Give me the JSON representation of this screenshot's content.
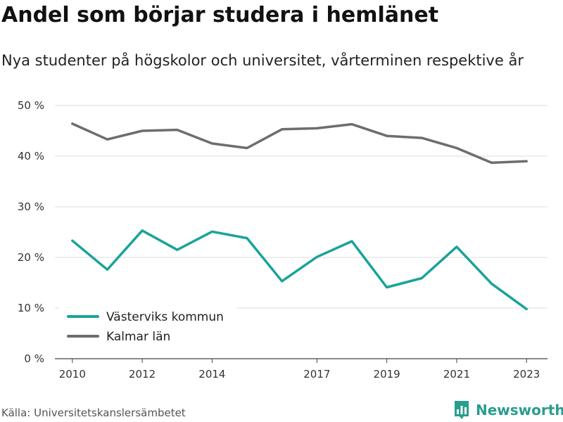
{
  "header": {
    "title": "Andel som börjar studera i hemlänet",
    "subtitle": "Nya studenter på högskolor och universitet, vårterminen respektive år"
  },
  "footer": {
    "source": "Källa: Universitetskanslersämbetet",
    "brand": "Newsworthy",
    "brand_icon": "bar-chart-logo-icon",
    "brand_color": "#2a9d8f"
  },
  "chart_data": {
    "type": "line",
    "title": "Andel som börjar studera i hemlänet",
    "subtitle": "Nya studenter på högskolor och universitet, vårterminen respektive år",
    "xlabel": "",
    "ylabel": "",
    "x": [
      2010,
      2011,
      2012,
      2013,
      2014,
      2015,
      2016,
      2017,
      2018,
      2019,
      2020,
      2021,
      2022,
      2023
    ],
    "xticks": [
      2010,
      2012,
      2014,
      2017,
      2019,
      2021,
      2023
    ],
    "xtick_labels": [
      "2010",
      "2012",
      "2014",
      "2017",
      "2019",
      "2021",
      "2023"
    ],
    "xlim": [
      2009.5,
      2023.6
    ],
    "ylim": [
      0,
      50
    ],
    "yticks": [
      0,
      10,
      20,
      30,
      40,
      50
    ],
    "ytick_labels": [
      "0 %",
      "10 %",
      "20 %",
      "30 %",
      "40 %",
      "50 %"
    ],
    "grid": true,
    "legend_position": "bottom-left",
    "series": [
      {
        "name": "Västerviks kommun",
        "color": "#1aa39a",
        "values": [
          23.3,
          17.6,
          25.3,
          21.5,
          25.1,
          23.8,
          15.3,
          20.1,
          23.2,
          14.1,
          15.9,
          22.1,
          14.8,
          9.8
        ]
      },
      {
        "name": "Kalmar län",
        "color": "#6d6c72",
        "values": [
          46.4,
          43.3,
          45.0,
          45.2,
          42.5,
          41.6,
          45.3,
          45.5,
          46.3,
          44.0,
          43.6,
          41.6,
          38.7,
          39.0
        ]
      }
    ]
  }
}
